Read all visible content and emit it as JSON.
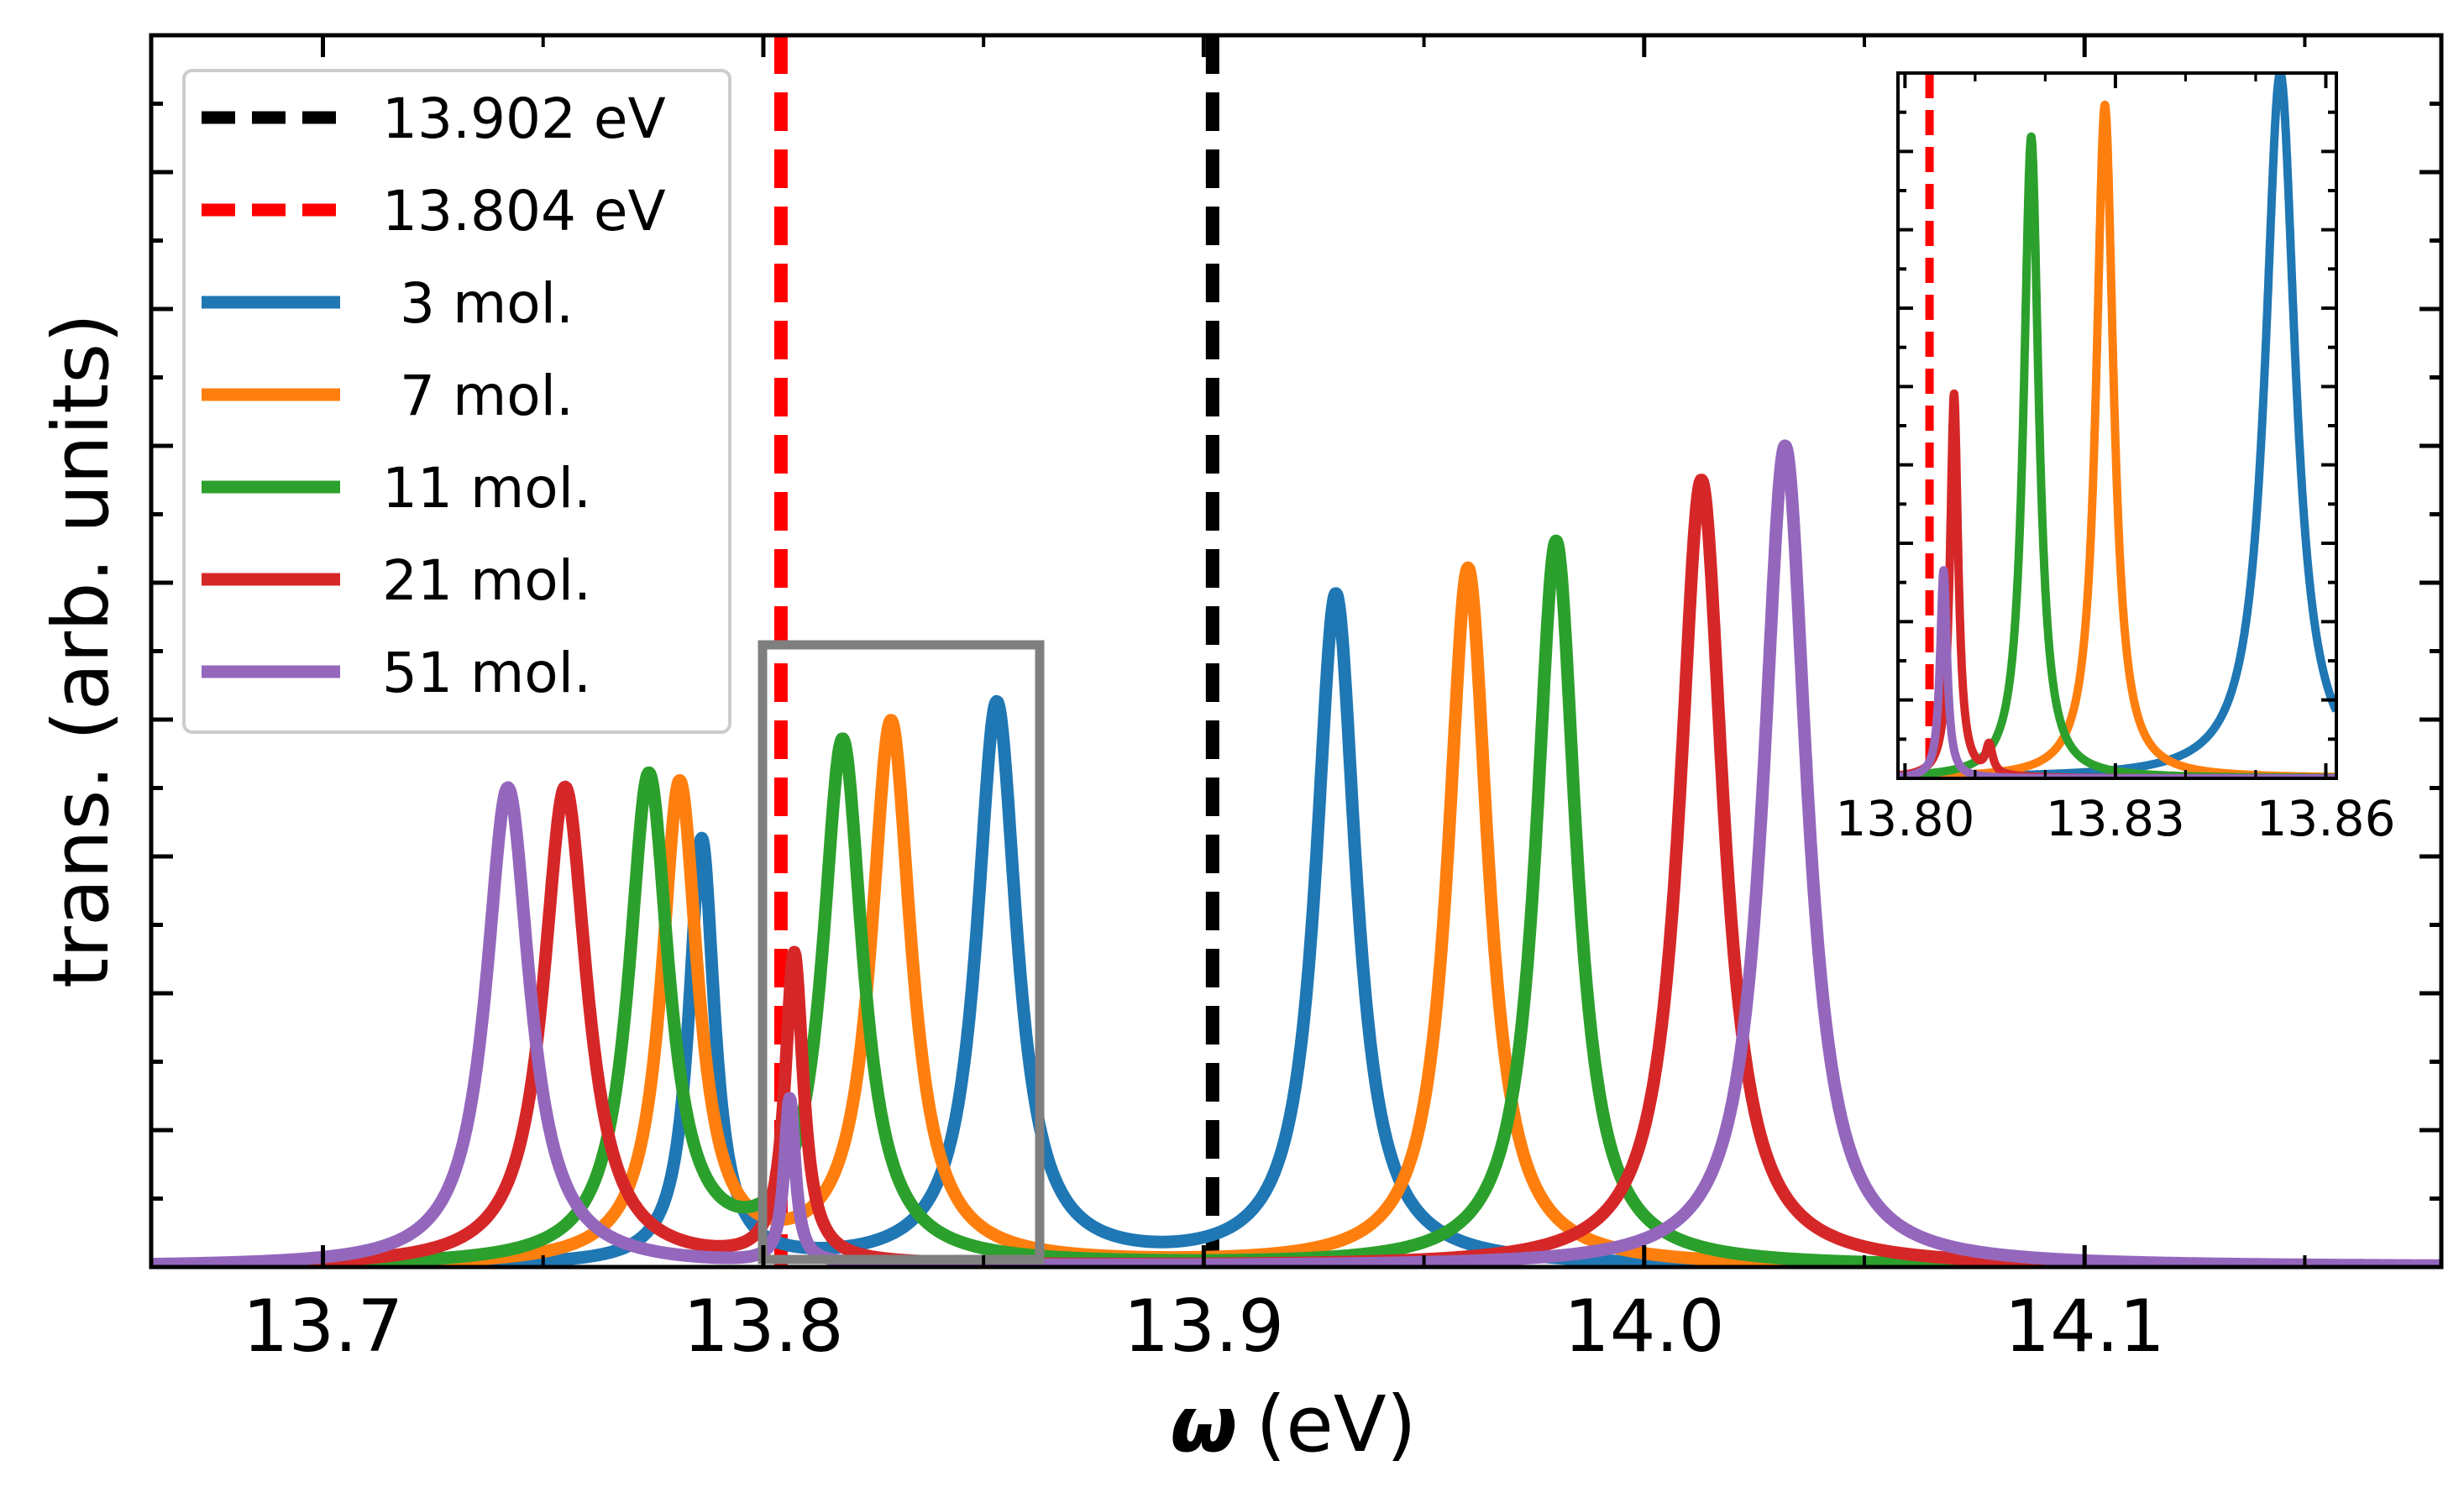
{
  "chart_data": [
    {
      "type": "line",
      "title": "",
      "xlabel_symbol": "ω",
      "xlabel_unit": "(eV)",
      "ylabel": "trans. (arb. units)",
      "xlim": [
        13.661,
        14.181
      ],
      "ylim": [
        0,
        9.0
      ],
      "x_ticks": [
        "13.7",
        "13.8",
        "13.9",
        "14.0",
        "14.1"
      ],
      "grid": false,
      "legend_position": "top-left",
      "reference_lines": [
        {
          "name": "13.902 eV",
          "x": 13.902,
          "color": "#000000",
          "style": "dashed"
        },
        {
          "name": "13.804 eV",
          "x": 13.804,
          "color": "#ff0000",
          "style": "dashed"
        }
      ],
      "series": [
        {
          "name": " 3 mol.",
          "color": "#1f77b4",
          "peaks": [
            {
              "x": 13.786,
              "height": 3.1,
              "width": 0.0035
            },
            {
              "x": 13.853,
              "height": 4.1,
              "width": 0.0055
            },
            {
              "x": 13.93,
              "height": 4.9,
              "width": 0.0055
            }
          ]
        },
        {
          "name": " 7 mol.",
          "color": "#ff7f0e",
          "peaks": [
            {
              "x": 13.781,
              "height": 3.5,
              "width": 0.005
            },
            {
              "x": 13.829,
              "height": 3.95,
              "width": 0.0055
            },
            {
              "x": 13.96,
              "height": 5.1,
              "width": 0.0055
            }
          ]
        },
        {
          "name": "11 mol.",
          "color": "#2ca02c",
          "peaks": [
            {
              "x": 13.774,
              "height": 3.55,
              "width": 0.0055
            },
            {
              "x": 13.818,
              "height": 3.8,
              "width": 0.0055
            },
            {
              "x": 13.98,
              "height": 5.3,
              "width": 0.0055
            }
          ]
        },
        {
          "name": "21 mol.",
          "color": "#d62728",
          "peaks": [
            {
              "x": 13.755,
              "height": 3.5,
              "width": 0.006
            },
            {
              "x": 13.807,
              "height": 2.25,
              "width": 0.0025
            },
            {
              "x": 14.013,
              "height": 5.75,
              "width": 0.006
            }
          ]
        },
        {
          "name": "51 mol.",
          "color": "#9467bd",
          "peaks": [
            {
              "x": 13.742,
              "height": 3.5,
              "width": 0.006
            },
            {
              "x": 13.806,
              "height": 1.2,
              "width": 0.0015
            },
            {
              "x": 14.032,
              "height": 6.0,
              "width": 0.006
            }
          ]
        }
      ]
    },
    {
      "type": "line",
      "title": "inset",
      "xlim": [
        13.799,
        13.8615
      ],
      "ylim": [
        0,
        1.0
      ],
      "x_ticks": [
        "13.80",
        "13.83",
        "13.86"
      ],
      "reference_lines": [
        {
          "name": "13.804 eV",
          "x": 13.8035,
          "color": "#ff0000",
          "style": "dashed"
        }
      ],
      "series": [
        {
          "name": " 3 mol.",
          "color": "#1f77b4",
          "peaks": [
            {
              "x": 13.8535,
              "height": 1.0,
              "width": 0.0026
            }
          ]
        },
        {
          "name": " 7 mol.",
          "color": "#ff7f0e",
          "peaks": [
            {
              "x": 13.8285,
              "height": 0.955,
              "width": 0.0015
            }
          ]
        },
        {
          "name": "11 mol.",
          "color": "#2ca02c",
          "peaks": [
            {
              "x": 13.818,
              "height": 0.91,
              "width": 0.0013
            }
          ]
        },
        {
          "name": "21 mol.",
          "color": "#d62728",
          "peaks": [
            {
              "x": 13.807,
              "height": 0.545,
              "width": 0.0007
            },
            {
              "x": 13.812,
              "height": 0.04,
              "width": 0.0006
            }
          ]
        },
        {
          "name": "51 mol.",
          "color": "#9467bd",
          "peaks": [
            {
              "x": 13.8055,
              "height": 0.295,
              "width": 0.0006
            }
          ]
        }
      ]
    }
  ]
}
